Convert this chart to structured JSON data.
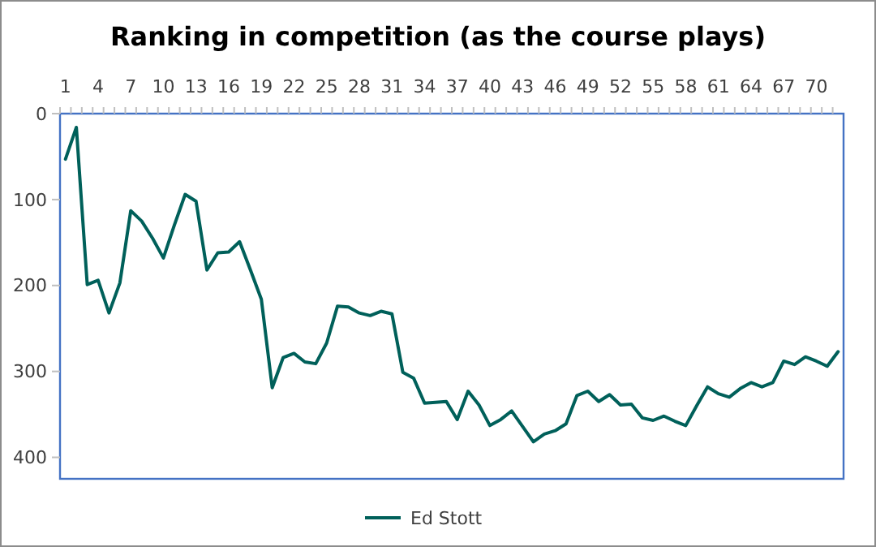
{
  "chart_data": {
    "type": "line",
    "title": "Ranking in competition (as the course plays)",
    "categories": [
      "1",
      null,
      null,
      "4",
      null,
      null,
      "7",
      null,
      null,
      "10",
      null,
      null,
      "13",
      null,
      null,
      "16",
      null,
      null,
      "19",
      null,
      null,
      "22",
      null,
      null,
      "25",
      null,
      null,
      "28",
      null,
      null,
      "31",
      null,
      null,
      "34",
      null,
      null,
      "37",
      null,
      null,
      "40",
      null,
      null,
      "43",
      null,
      null,
      "46",
      null,
      null,
      "49",
      null,
      null,
      "52",
      null,
      null,
      "55",
      null,
      null,
      "58",
      null,
      null,
      "61",
      null,
      null,
      "64",
      null,
      null,
      "67",
      null,
      null,
      "70",
      null,
      null
    ],
    "series": [
      {
        "name": "Ed Stott",
        "color": "#00605a",
        "values": [
          53,
          16,
          199,
          194,
          232,
          197,
          113,
          125,
          145,
          168,
          130,
          94,
          102,
          182,
          162,
          161,
          149,
          182,
          216,
          319,
          284,
          279,
          289,
          291,
          267,
          224,
          225,
          232,
          235,
          230,
          233,
          301,
          308,
          337,
          336,
          335,
          356,
          323,
          339,
          363,
          356,
          346,
          364,
          382,
          373,
          369,
          361,
          328,
          323,
          335,
          327,
          339,
          338,
          354,
          357,
          352,
          358,
          363,
          340,
          318,
          326,
          330,
          320,
          313,
          318,
          313,
          288,
          292,
          283,
          288,
          294,
          277
        ]
      }
    ],
    "ylim": [
      425,
      0
    ],
    "yticks": [
      0,
      100,
      200,
      300,
      400
    ],
    "grid": false,
    "legend": "bottom",
    "marker": "none",
    "line_style": "solid"
  }
}
